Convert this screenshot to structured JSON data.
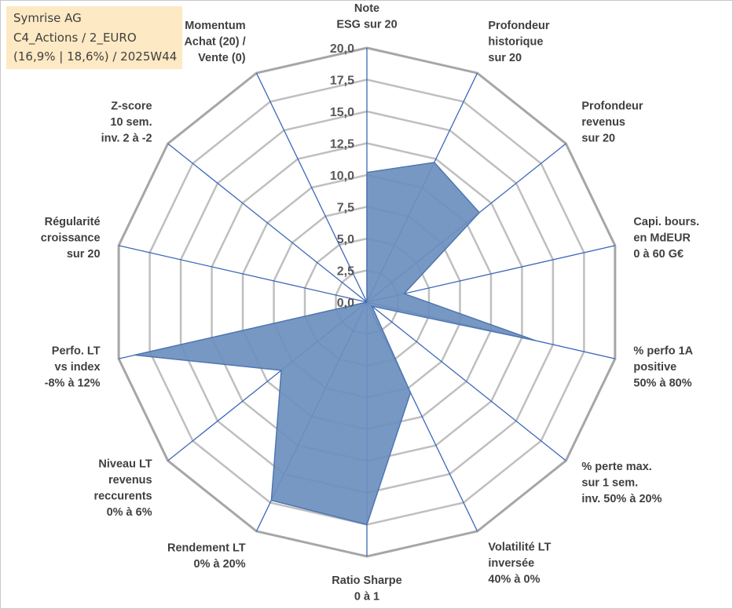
{
  "info": {
    "line1": "Symrise AG",
    "line2": "C4_Actions / 2_EURO",
    "line3": "(16,9% | 18,6%) / 2025W44"
  },
  "colors": {
    "fill": "#6d8fbf",
    "stroke": "#4f76b0",
    "spokes": "#3d68b8",
    "grid": "#bfbfbf",
    "outer_grid": "#a6a6a6"
  },
  "chart_data": {
    "type": "radar",
    "rmax": 20,
    "tick_step": 2.5,
    "tick_labels": [
      "0,0",
      "2,5",
      "5,0",
      "7,5",
      "10,0",
      "12,5",
      "15,0",
      "17,5",
      "20,0"
    ],
    "axes": [
      [
        "Note",
        "ESG sur 20"
      ],
      [
        "Profondeur",
        "historique",
        "sur 20"
      ],
      [
        "Profondeur",
        "revenus",
        "sur 20"
      ],
      [
        "Capi. bours.",
        "en MdEUR",
        "0 à 60 G€"
      ],
      [
        "% perfo 1A",
        "positive",
        "50% à 80%"
      ],
      [
        "% perte max.",
        "sur 1 sem.",
        "inv. 50% à 20%"
      ],
      [
        "Volatilité LT",
        "inversée",
        "40% à 0%"
      ],
      [
        "Ratio Sharpe",
        "0 à 1"
      ],
      [
        "Rendement LT",
        "0% à 20%"
      ],
      [
        "Niveau LT",
        "revenus",
        "reccurents",
        "0% à 6%"
      ],
      [
        "Perfo. LT",
        "vs index",
        "-8% à 12%"
      ],
      [
        "Régularité",
        "croissance",
        "sur 20"
      ],
      [
        "Z-score",
        "10 sem.",
        "inv. 2 à -2"
      ],
      [
        "Momentum",
        "Achat (20) /",
        "Vente (0)"
      ]
    ],
    "values": [
      10.2,
      12.2,
      11.3,
      3.0,
      13.6,
      0.5,
      7.9,
      17.5,
      17.3,
      8.6,
      18.7,
      0,
      0,
      0
    ]
  }
}
